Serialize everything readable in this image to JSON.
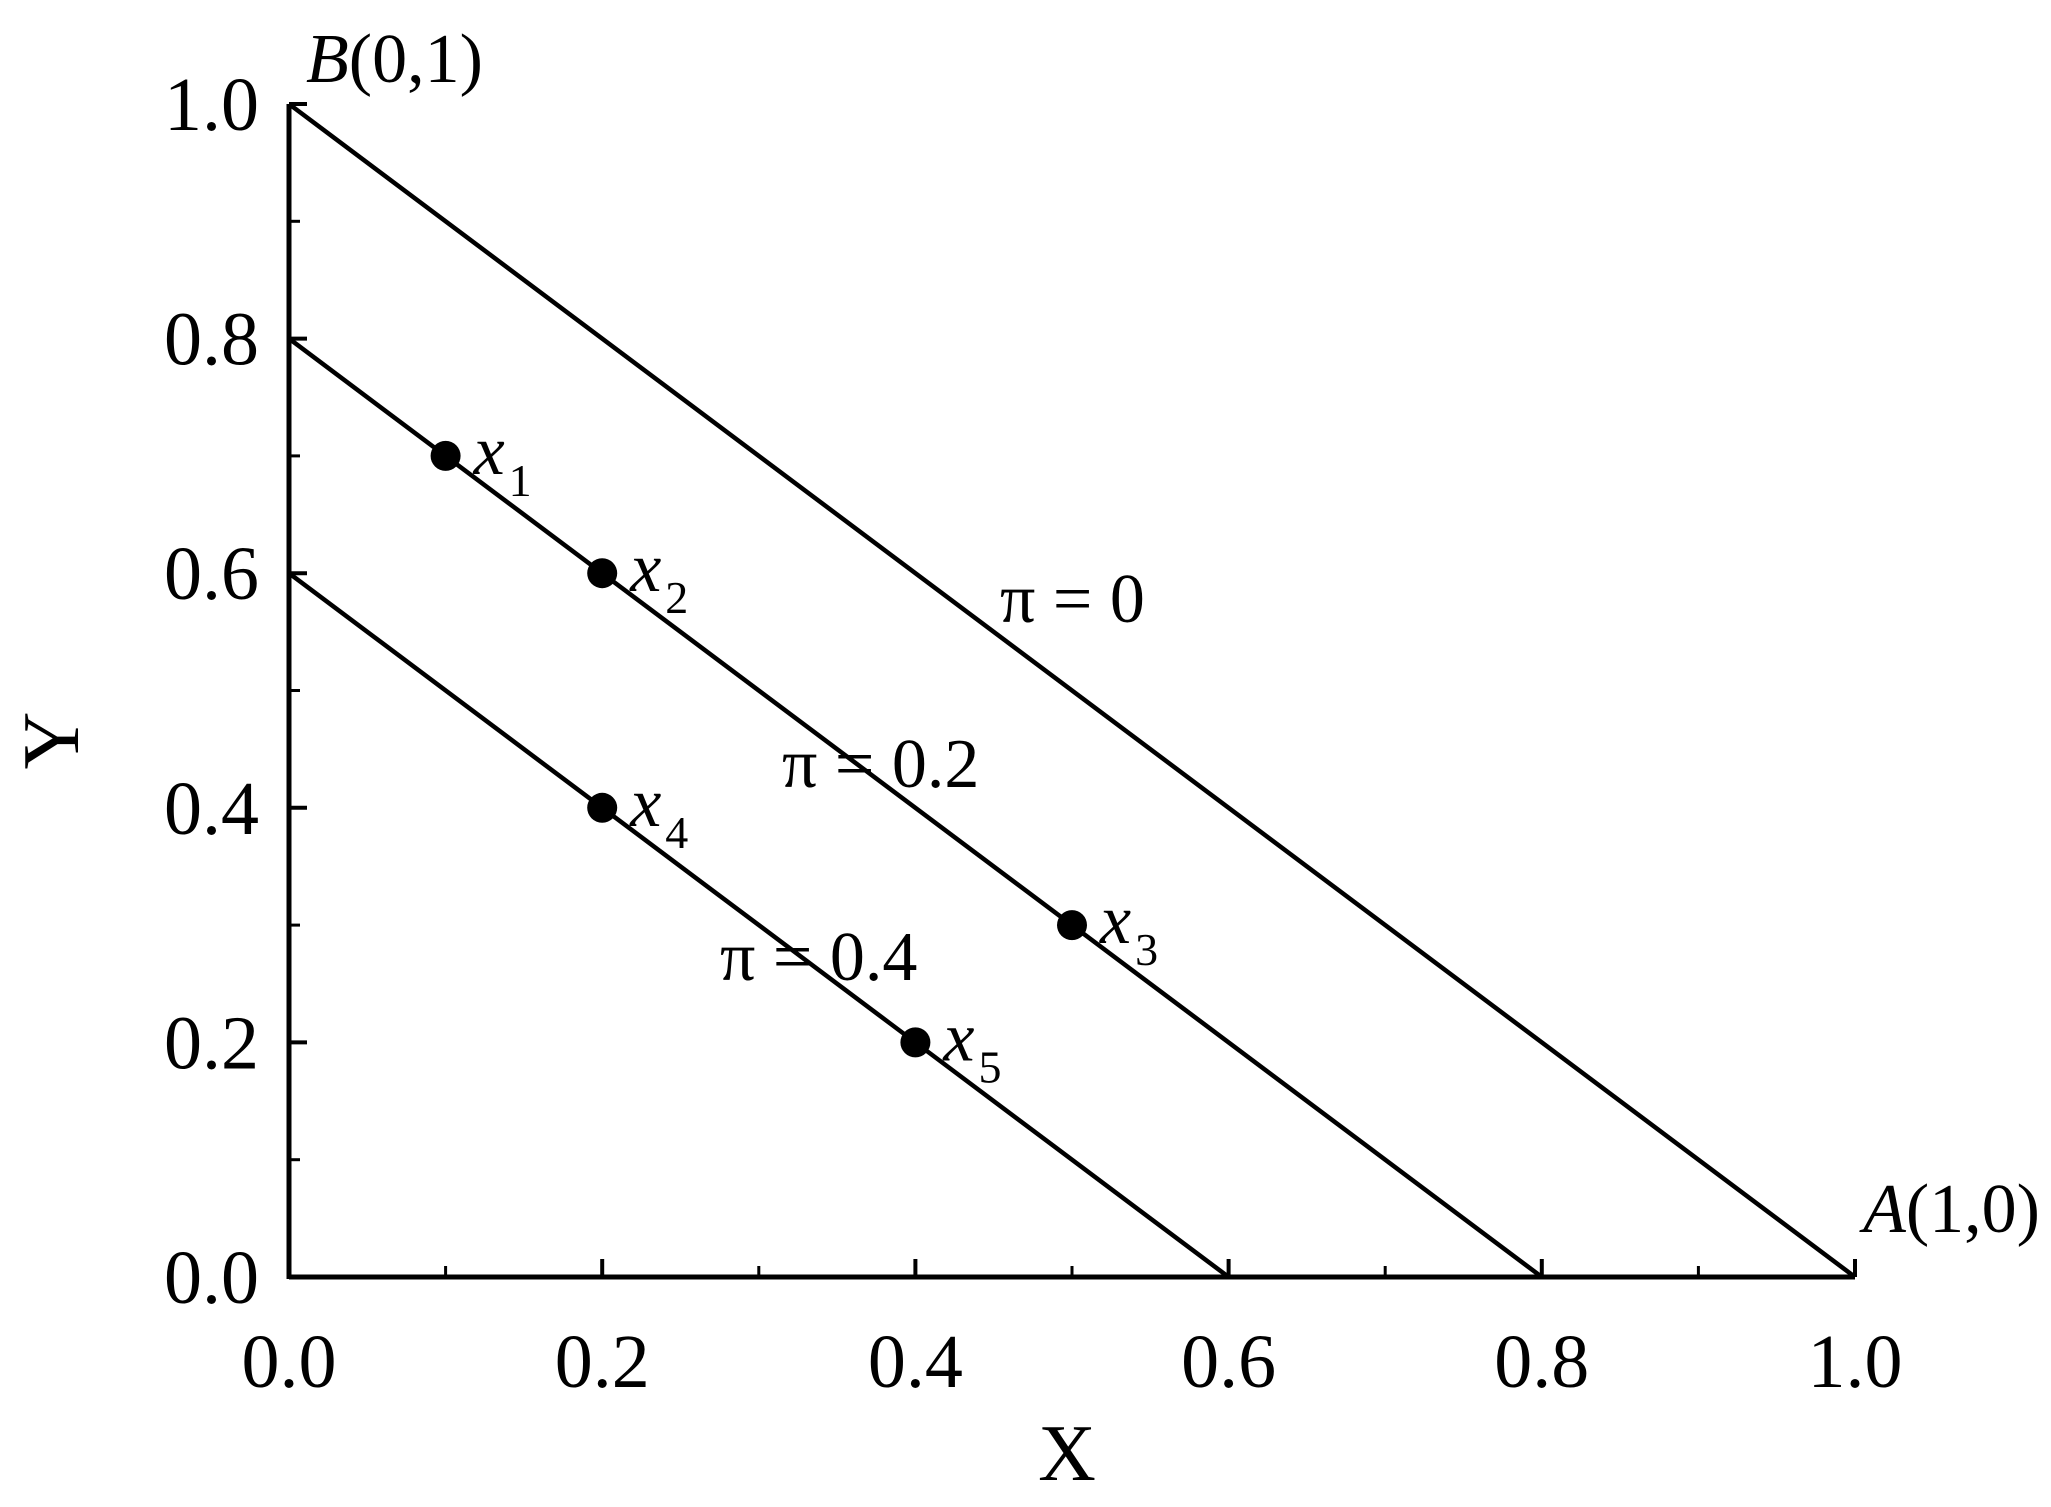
{
  "chart_data": {
    "type": "line",
    "title": "",
    "xlabel": "X",
    "ylabel": "Y",
    "xlim": [
      0.0,
      1.0
    ],
    "ylim": [
      0.0,
      1.0
    ],
    "x_ticks": [
      "0.0",
      "0.2",
      "0.4",
      "0.6",
      "0.8",
      "1.0"
    ],
    "y_ticks": [
      "0.0",
      "0.2",
      "0.4",
      "0.6",
      "0.8",
      "1.0"
    ],
    "grid": false,
    "series": [
      {
        "label": "π = 0",
        "x": [
          0.0,
          1.0
        ],
        "y": [
          1.0,
          0.0
        ]
      },
      {
        "label": "π = 0.2",
        "x": [
          0.0,
          0.8
        ],
        "y": [
          0.8,
          0.0
        ]
      },
      {
        "label": "π = 0.4",
        "x": [
          0.0,
          0.6
        ],
        "y": [
          0.6,
          0.0
        ]
      }
    ],
    "points": [
      {
        "name": "x",
        "sub": "1",
        "x": 0.1,
        "y": 0.7
      },
      {
        "name": "x",
        "sub": "2",
        "x": 0.2,
        "y": 0.6
      },
      {
        "name": "x",
        "sub": "3",
        "x": 0.5,
        "y": 0.3
      },
      {
        "name": "x",
        "sub": "4",
        "x": 0.2,
        "y": 0.4
      },
      {
        "name": "x",
        "sub": "5",
        "x": 0.4,
        "y": 0.2
      }
    ],
    "vertex_labels": [
      {
        "letter": "B",
        "coords": "(0,1)",
        "x": 0.0,
        "y": 1.0
      },
      {
        "letter": "A",
        "coords": "(1,0)",
        "x": 1.0,
        "y": 0.0
      }
    ]
  }
}
